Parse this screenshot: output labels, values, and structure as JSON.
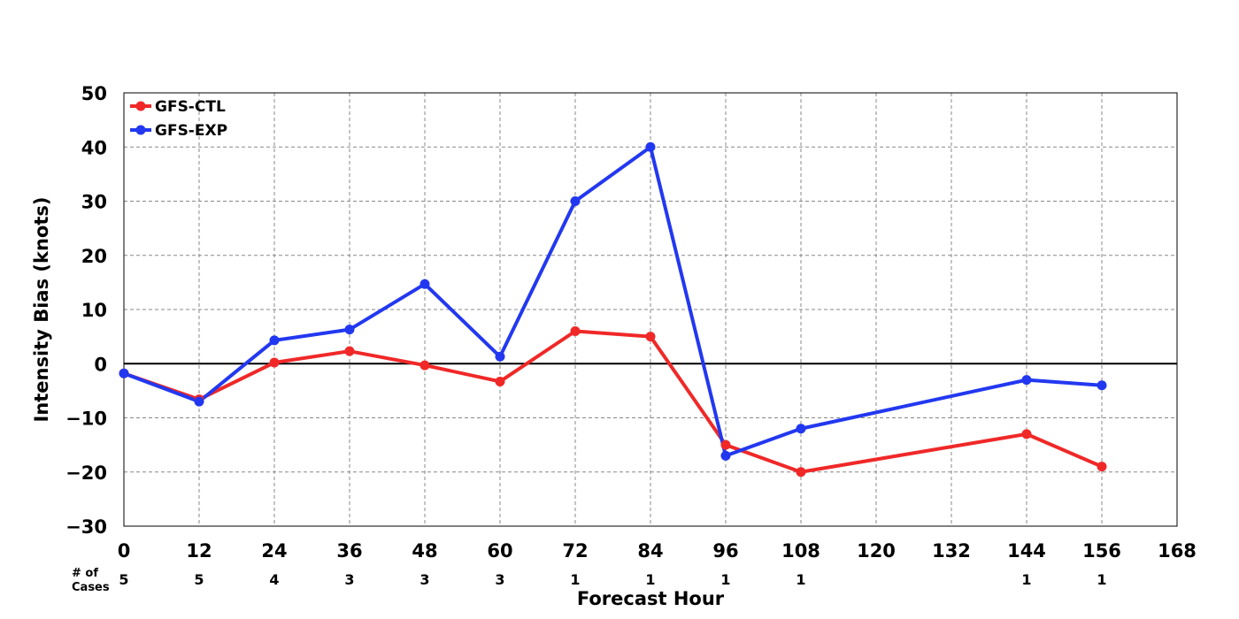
{
  "chart_data": {
    "type": "line",
    "xlabel": "Forecast Hour",
    "ylabel": "Intensity Bias (knots)",
    "xlim": [
      0,
      168
    ],
    "ylim": [
      -30,
      50
    ],
    "x_ticks": [
      0,
      12,
      24,
      36,
      48,
      60,
      72,
      84,
      96,
      108,
      120,
      132,
      144,
      156,
      168
    ],
    "y_ticks": [
      -30,
      -20,
      -10,
      0,
      10,
      20,
      30,
      40,
      50
    ],
    "y_tick_labels": [
      "−30",
      "−20",
      "−10",
      "0",
      "10",
      "20",
      "30",
      "40",
      "50"
    ],
    "grid": true,
    "zero_line": true,
    "legend_position": "top-left",
    "series": [
      {
        "name": "GFS-CTL",
        "color": "#f02828",
        "points": [
          {
            "x": 0,
            "y": -1.8
          },
          {
            "x": 12,
            "y": -6.6
          },
          {
            "x": 24,
            "y": 0.2
          },
          {
            "x": 36,
            "y": 2.3
          },
          {
            "x": 48,
            "y": -0.3
          },
          {
            "x": 60,
            "y": -3.3
          },
          {
            "x": 72,
            "y": 6.0
          },
          {
            "x": 84,
            "y": 5.0
          },
          {
            "x": 96,
            "y": -15.0
          },
          {
            "x": 108,
            "y": -20.0
          },
          {
            "x": 144,
            "y": -13.0
          },
          {
            "x": 156,
            "y": -19.0
          }
        ]
      },
      {
        "name": "GFS-EXP",
        "color": "#2238f0",
        "points": [
          {
            "x": 0,
            "y": -1.8
          },
          {
            "x": 12,
            "y": -7.0
          },
          {
            "x": 24,
            "y": 4.3
          },
          {
            "x": 36,
            "y": 6.3
          },
          {
            "x": 48,
            "y": 14.7
          },
          {
            "x": 60,
            "y": 1.3
          },
          {
            "x": 72,
            "y": 30.0
          },
          {
            "x": 84,
            "y": 40.0
          },
          {
            "x": 96,
            "y": -17.0
          },
          {
            "x": 108,
            "y": -12.0
          },
          {
            "x": 144,
            "y": -3.0
          },
          {
            "x": 156,
            "y": -4.0
          }
        ]
      }
    ],
    "cases": {
      "header": [
        "# of",
        "Cases"
      ],
      "values": [
        {
          "x": 0,
          "n": "5"
        },
        {
          "x": 12,
          "n": "5"
        },
        {
          "x": 24,
          "n": "4"
        },
        {
          "x": 36,
          "n": "3"
        },
        {
          "x": 48,
          "n": "3"
        },
        {
          "x": 60,
          "n": "3"
        },
        {
          "x": 72,
          "n": "1"
        },
        {
          "x": 84,
          "n": "1"
        },
        {
          "x": 96,
          "n": "1"
        },
        {
          "x": 108,
          "n": "1"
        },
        {
          "x": 144,
          "n": "1"
        },
        {
          "x": 156,
          "n": "1"
        }
      ]
    }
  }
}
